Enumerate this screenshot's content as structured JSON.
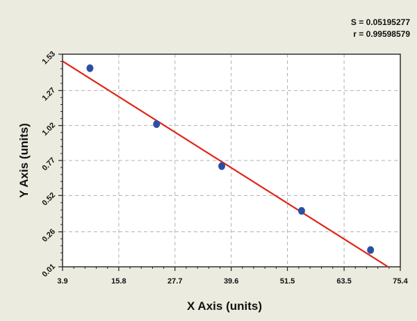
{
  "stats": {
    "s_line": "S = 0.05195277",
    "r_line": "r = 0.99598579"
  },
  "chart_data": {
    "type": "scatter",
    "xlabel": "X Axis (units)",
    "ylabel": "Y Axis (units)",
    "xlim": [
      3.9,
      75.4
    ],
    "ylim": [
      0.01,
      1.53
    ],
    "x_ticks": [
      3.9,
      15.8,
      27.7,
      39.6,
      51.5,
      63.5,
      75.4
    ],
    "x_tick_labels": [
      "3.9",
      "15.8",
      "27.7",
      "39.6",
      "51.5",
      "63.5",
      "75.4"
    ],
    "y_ticks": [
      0.01,
      0.26,
      0.52,
      0.77,
      1.02,
      1.27,
      1.53
    ],
    "y_tick_labels": [
      "0.01",
      "0.26",
      "0.52",
      "0.77",
      "1.02",
      "1.27",
      "1.53"
    ],
    "grid": true,
    "series": [
      {
        "points": [
          {
            "x": 9.7,
            "y": 1.43
          },
          {
            "x": 23.8,
            "y": 1.03
          },
          {
            "x": 37.6,
            "y": 0.73
          },
          {
            "x": 54.5,
            "y": 0.41
          },
          {
            "x": 69.1,
            "y": 0.13
          }
        ]
      }
    ],
    "fit_line": {
      "x": [
        3.9,
        72.8
      ],
      "y": [
        1.48,
        0.01
      ]
    },
    "colors": {
      "background": "#ecebdf",
      "plot_background": "#ffffff",
      "points": "#2b4fa3",
      "fit_line": "#e02418",
      "grid": "#b0b0b0"
    }
  }
}
